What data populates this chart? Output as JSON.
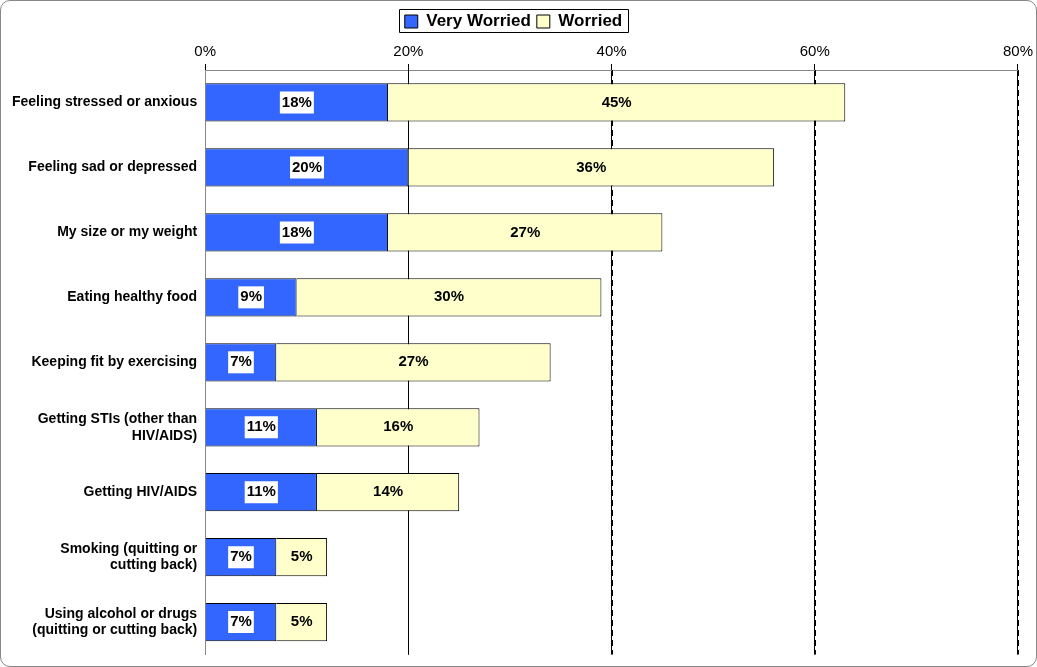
{
  "chart_data": {
    "type": "bar",
    "orientation": "horizontal",
    "stacked": true,
    "categories": [
      "Feeling stressed or anxious",
      "Feeling sad or depressed",
      "My size or my weight",
      "Eating healthy food",
      "Keeping fit by exercising",
      "Getting STIs (other than HIV/AIDS)",
      "Getting HIV/AIDS",
      "Smoking (quitting or cutting back)",
      "Using alcohol or drugs (quitting or cutting back)"
    ],
    "series": [
      {
        "name": "Very Worried",
        "color": "#3366ff",
        "values": [
          18,
          20,
          18,
          9,
          7,
          11,
          11,
          7,
          7
        ],
        "value_labels": [
          "18%",
          "20%",
          "18%",
          "9%",
          "7%",
          "11%",
          "11%",
          "7%",
          "7%"
        ]
      },
      {
        "name": "Worried",
        "color": "#ffffcc",
        "values": [
          45,
          36,
          27,
          30,
          27,
          16,
          14,
          5,
          5
        ],
        "value_labels": [
          "45%",
          "36%",
          "27%",
          "30%",
          "27%",
          "16%",
          "14%",
          "5%",
          "5%"
        ]
      }
    ],
    "xlim": [
      0,
      80
    ],
    "xticks": [
      {
        "value": 0,
        "label": "0%"
      },
      {
        "value": 20,
        "label": "20%"
      },
      {
        "value": 40,
        "label": "40%"
      },
      {
        "value": 60,
        "label": "60%"
      },
      {
        "value": 80,
        "label": "80%"
      }
    ],
    "grid": "x",
    "legend": "top"
  }
}
